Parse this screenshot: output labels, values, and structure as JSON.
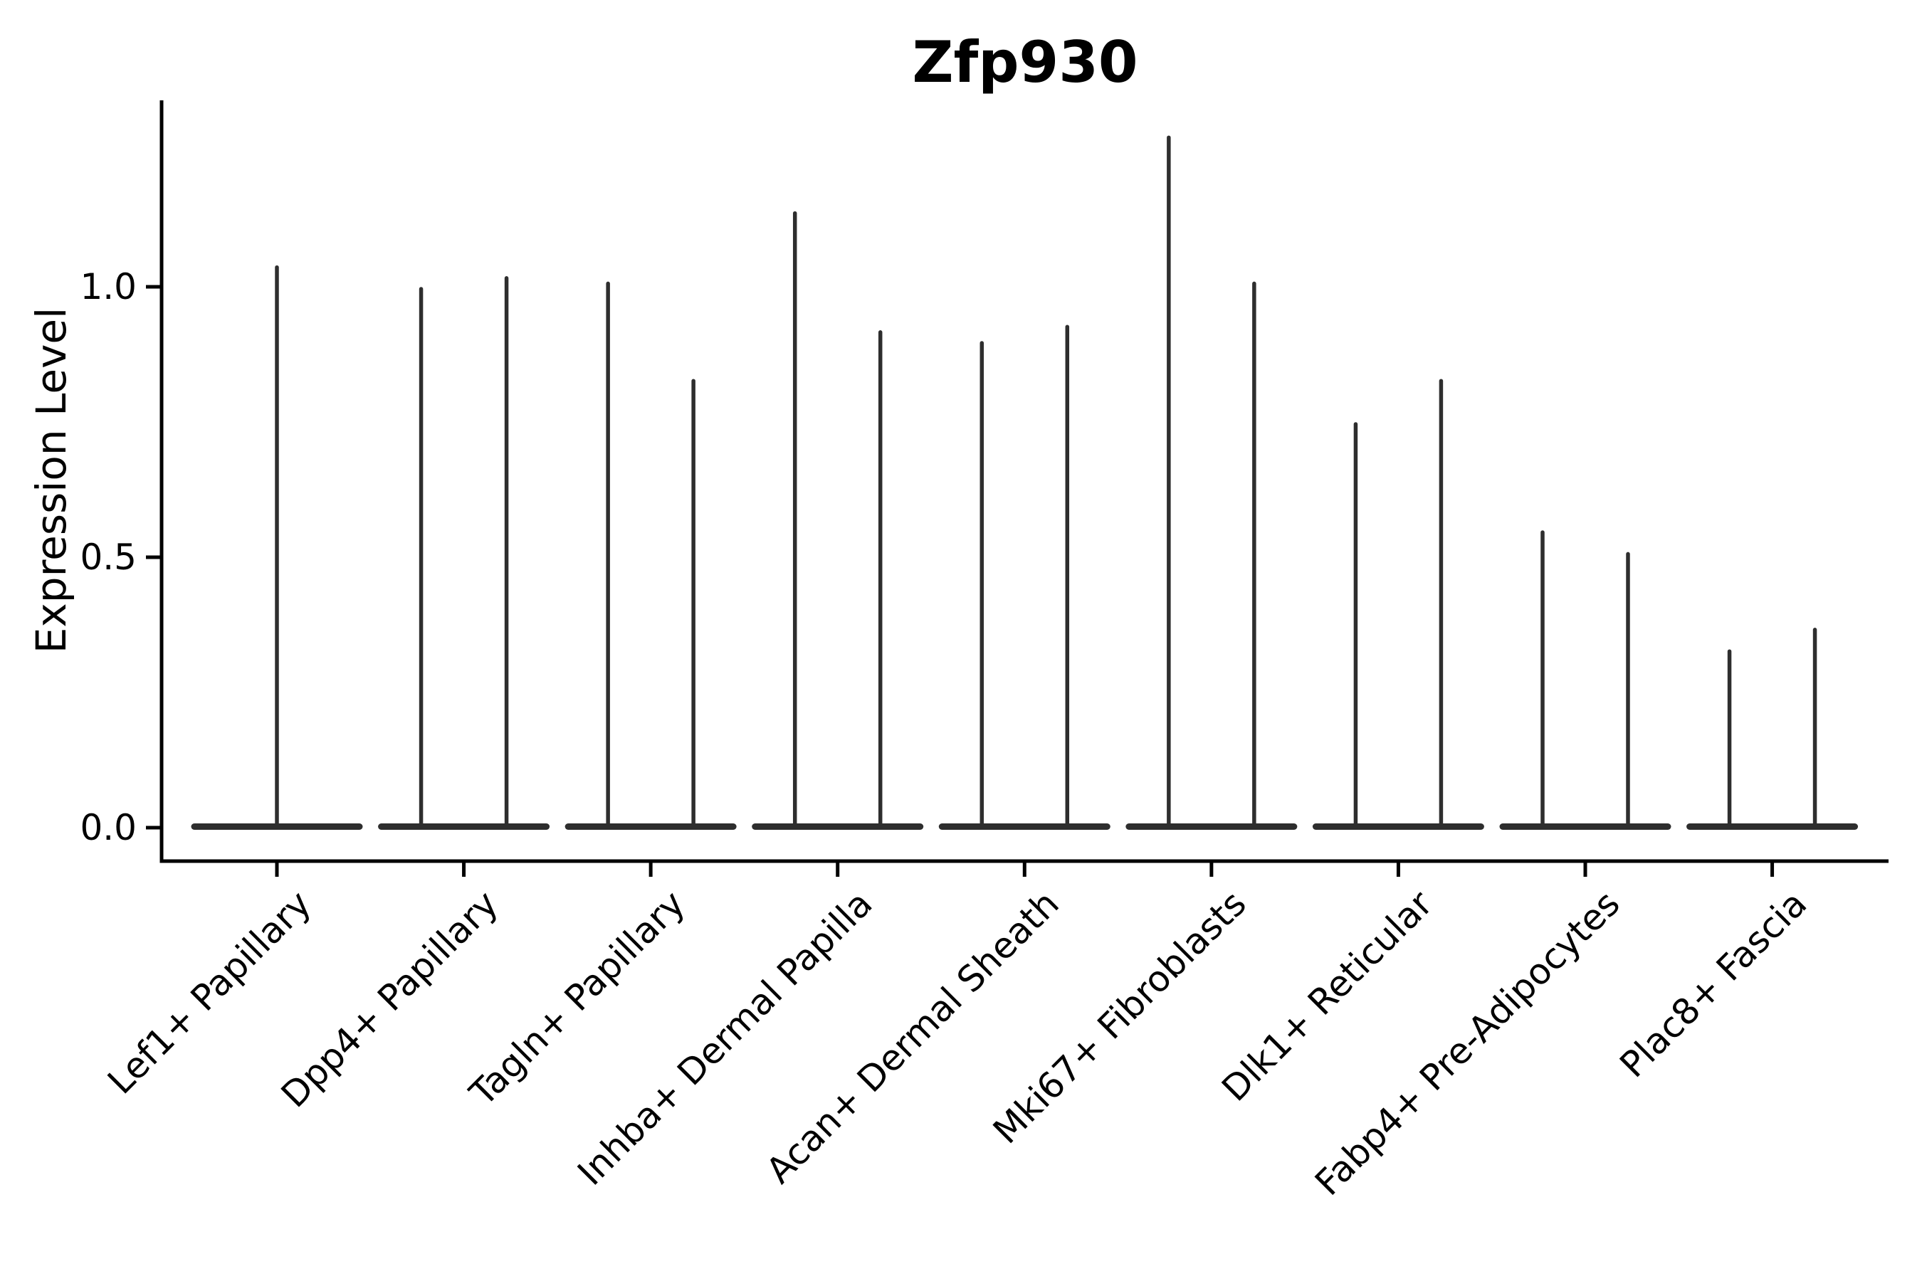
{
  "figure": {
    "title": "Zfp930"
  },
  "chart_data": {
    "type": "violin",
    "title": "Zfp930",
    "xlabel": "",
    "ylabel": "Expression Level",
    "categories": [
      "Lef1+ Papillary",
      "Dpp4+ Papillary",
      "Tagln+ Papillary",
      "Inhba+ Dermal Papilla",
      "Acan+ Dermal Sheath",
      "Mki67+ Fibroblasts",
      "Dlk1+ Reticular",
      "Fabp4+ Pre-Adipocytes",
      "Plac8+ Fascia"
    ],
    "yticks": [
      0.0,
      0.5,
      1.0
    ],
    "ytick_labels": [
      "0.0",
      "0.5",
      "1.0"
    ],
    "ylim": [
      -0.06,
      1.35
    ],
    "x_tick_rotation_deg": 45,
    "grid": false,
    "legend": "none",
    "violin_style": "violins collapsed flat at zero expression with a single thin density spike rising to the max value",
    "violins": [
      {
        "category": "Lef1+ Papillary",
        "spike_maxima": [
          1.04
        ]
      },
      {
        "category": "Dpp4+ Papillary",
        "spike_maxima": [
          1.0,
          1.02
        ]
      },
      {
        "category": "Tagln+ Papillary",
        "spike_maxima": [
          1.01,
          0.83
        ]
      },
      {
        "category": "Inhba+ Dermal Papilla",
        "spike_maxima": [
          1.14,
          0.92
        ]
      },
      {
        "category": "Acan+ Dermal Sheath",
        "spike_maxima": [
          0.9,
          0.93
        ]
      },
      {
        "category": "Mki67+ Fibroblasts",
        "spike_maxima": [
          1.28,
          1.01
        ]
      },
      {
        "category": "Dlk1+ Reticular",
        "spike_maxima": [
          0.75,
          0.83
        ]
      },
      {
        "category": "Fabp4+ Pre-Adipocytes",
        "spike_maxima": [
          0.55,
          0.51
        ]
      },
      {
        "category": "Plac8+ Fascia",
        "spike_maxima": [
          0.33,
          0.37
        ]
      }
    ],
    "colors": {
      "violin_ink": "#2e2e2e",
      "axis": "#000000",
      "background": "#ffffff"
    }
  }
}
